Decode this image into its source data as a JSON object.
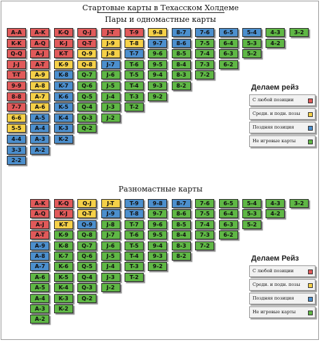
{
  "header": {
    "title": "Стартовые карты в Техасском Холдеме",
    "subtitle_pairs": "Пары и одномастные карты",
    "subtitle_offsuit": "Разномастные карты"
  },
  "colors": {
    "r": "#e15a5a",
    "y": "#f5d048",
    "b": "#4c8fcd",
    "g": "#5fb745"
  },
  "pairs_suited": {
    "columns": [
      [
        "A-A|r",
        "K-K|r",
        "Q-Q|r",
        "J-J|r",
        "T-T|r",
        "9-9|r",
        "8-8|r",
        "7-7|r",
        "6-6|y",
        "5-5|y",
        "4-4|b",
        "3-3|b",
        "2-2|b"
      ],
      [
        "A-K|r",
        "A-Q|r",
        "A-J|r",
        "A-T|r",
        "A-9|y",
        "A-8|y",
        "A-7|y",
        "A-6|y",
        "A-5|b",
        "A-4|b",
        "A-3|b",
        "A-2|b"
      ],
      [
        "K-Q|r",
        "K-J|r",
        "K-T|r",
        "K-9|y",
        "K-8|b",
        "K-7|b",
        "K-6|b",
        "K-5|b",
        "K-4|b",
        "K-3|b",
        "K-2|b"
      ],
      [
        "Q-J|r",
        "Q-T|r",
        "Q-9|y",
        "Q-8|y",
        "Q-7|g",
        "Q-6|g",
        "Q-5|g",
        "Q-4|g",
        "Q-3|g",
        "Q-2|g"
      ],
      [
        "J-T|r",
        "J-9|y",
        "J-8|y",
        "J-7|b",
        "J-6|g",
        "J-5|g",
        "J-4|g",
        "J-3|g",
        "J-2|g"
      ],
      [
        "T-9|r",
        "T-8|y",
        "T-7|b",
        "T-6|g",
        "T-5|g",
        "T-4|g",
        "T-3|g",
        "T-2|g"
      ],
      [
        "9-8|y",
        "9-7|b",
        "9-6|g",
        "9-5|g",
        "9-4|g",
        "9-3|g",
        "9-2|g"
      ],
      [
        "8-7|b",
        "8-6|b",
        "8-5|g",
        "8-4|g",
        "8-3|g",
        "8-2|g"
      ],
      [
        "7-6|b",
        "7-5|g",
        "7-4|g",
        "7-3|g",
        "7-2|g"
      ],
      [
        "6-5|b",
        "6-4|g",
        "6-3|g",
        "6-2|g"
      ],
      [
        "5-4|b",
        "5-3|g",
        "5-2|g"
      ],
      [
        "4-3|g",
        "4-2|g"
      ],
      [
        "3-2|g"
      ]
    ],
    "legend": {
      "title": "Делаем рейз",
      "items": [
        {
          "label": "С любой позиции",
          "color": "r"
        },
        {
          "label": "Среди. и подн. позы",
          "color": "y"
        },
        {
          "label": "Поздняя позиция",
          "color": "b"
        },
        {
          "label": "Не игровые карты",
          "color": "g"
        }
      ]
    }
  },
  "offsuit": {
    "columns": [
      [],
      [
        "A-K|r",
        "A-Q|r",
        "A-J|r",
        "A-T|r",
        "A-9|b",
        "A-8|b",
        "A-7|b",
        "A-6|g",
        "A-5|g",
        "A-4|g",
        "A-3|g",
        "A-2|g"
      ],
      [
        "K-Q|r",
        "K-J|r",
        "K-T|y",
        "K-9|g",
        "K-8|g",
        "K-7|g",
        "K-6|g",
        "K-5|g",
        "K-4|g",
        "K-3|g",
        "K-2|g"
      ],
      [
        "Q-J|y",
        "Q-T|y",
        "Q-9|b",
        "Q-8|g",
        "Q-7|g",
        "Q-6|g",
        "Q-5|g",
        "Q-4|g",
        "Q-3|g",
        "Q-2|g"
      ],
      [
        "J-T|y",
        "J-9|b",
        "J-8|g",
        "J-7|g",
        "J-6|g",
        "J-5|g",
        "J-4|g",
        "J-3|g",
        "J-2|g"
      ],
      [
        "T-9|b",
        "T-8|b",
        "T-7|g",
        "T-6|g",
        "T-5|g",
        "T-4|g",
        "T-3|g",
        "T-2|g"
      ],
      [
        "9-8|b",
        "9-7|g",
        "9-6|g",
        "9-5|g",
        "9-4|g",
        "9-3|g",
        "9-2|g"
      ],
      [
        "8-7|b",
        "8-6|g",
        "8-5|g",
        "8-4|g",
        "8-3|g",
        "8-2|g"
      ],
      [
        "7-6|g",
        "7-5|g",
        "7-4|g",
        "7-3|g",
        "7-2|g"
      ],
      [
        "6-5|g",
        "6-4|g",
        "6-3|g",
        "6-2|g"
      ],
      [
        "5-4|g",
        "5-3|g",
        "5-2|g"
      ],
      [
        "4-3|g",
        "4-2|g"
      ],
      [
        "3-2|g"
      ]
    ],
    "legend": {
      "title": "Делаем Рейз",
      "items": [
        {
          "label": "С любой позиции",
          "color": "r"
        },
        {
          "label": "Среди. и подн. позы",
          "color": "y"
        },
        {
          "label": "Поздняя позиция",
          "color": "b"
        },
        {
          "label": "Не игровые карты",
          "color": "g"
        }
      ]
    }
  }
}
